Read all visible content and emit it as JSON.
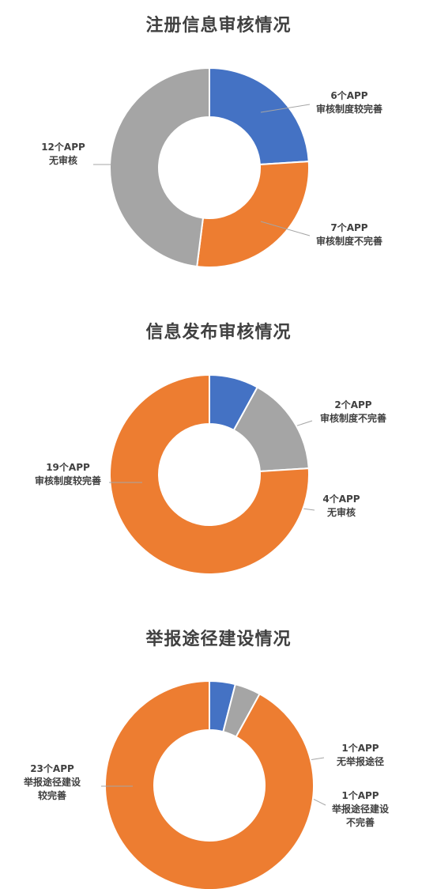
{
  "colors": {
    "blue": "#4472c4",
    "orange": "#ed7d31",
    "gray": "#a5a5a5",
    "text": "#404040"
  },
  "chart_data": [
    {
      "type": "pie",
      "title": "注册信息审核情况",
      "slices": [
        {
          "value": 6,
          "color": "#4472c4",
          "lines": [
            "6个APP",
            "审核制度较完善"
          ]
        },
        {
          "value": 7,
          "color": "#ed7d31",
          "lines": [
            "7个APP",
            "审核制度不完善"
          ]
        },
        {
          "value": 12,
          "color": "#a5a5a5",
          "lines": [
            "12个APP",
            "无审核"
          ]
        }
      ]
    },
    {
      "type": "pie",
      "title": "信息发布审核情况",
      "slices": [
        {
          "value": 2,
          "color": "#4472c4",
          "lines": [
            "2个APP",
            "审核制度不完善"
          ]
        },
        {
          "value": 4,
          "color": "#a5a5a5",
          "lines": [
            "4个APP",
            "无审核"
          ]
        },
        {
          "value": 19,
          "color": "#ed7d31",
          "lines": [
            "19个APP",
            "审核制度较完善"
          ]
        }
      ]
    },
    {
      "type": "pie",
      "title": "举报途径建设情况",
      "slices": [
        {
          "value": 1,
          "color": "#4472c4",
          "lines": [
            "1个APP",
            "无举报途径"
          ]
        },
        {
          "value": 1,
          "color": "#a5a5a5",
          "lines": [
            "1个APP",
            "举报途径建设",
            "不完善"
          ]
        },
        {
          "value": 23,
          "color": "#ed7d31",
          "lines": [
            "23个APP",
            "举报途径建设",
            "较完善"
          ]
        }
      ]
    }
  ]
}
